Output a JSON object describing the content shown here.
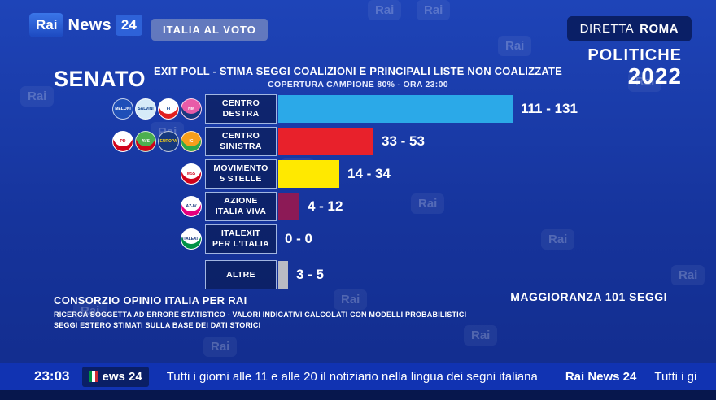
{
  "header": {
    "logo": {
      "rai": "Rai",
      "news": "News",
      "num": "24"
    },
    "italia_badge": "ITALIA AL VOTO",
    "diretta_label": "DIRETTA",
    "diretta_city": "ROMA",
    "politiche_line1": "POLITICHE",
    "politiche_line2": "2022"
  },
  "panel": {
    "section": "SENATO",
    "title": "EXIT POLL - STIMA SEGGI COALIZIONI E PRINCIPALI LISTE NON COALIZZATE",
    "subtitle": "COPERTURA CAMPIONE 80% - ORA 23:00"
  },
  "chart_data": {
    "type": "bar",
    "orientation": "horizontal",
    "title": "EXIT POLL - STIMA SEGGI COALIZIONI E PRINCIPALI LISTE NON COALIZZATE",
    "subtitle": "COPERTURA CAMPIONE 80% - ORA 23:00",
    "unit": "seggi",
    "scale_max": 131,
    "rows": [
      {
        "name": "centro-destra",
        "label1": "CENTRO",
        "label2": "DESTRA",
        "low": 111,
        "high": 131,
        "range": "111 - 131",
        "color": "#2BA9E8",
        "logos": [
          {
            "name": "fratelli-ditalia",
            "label": "MELONI",
            "bg": "#1F4FB8",
            "fg": "#FFFFFF"
          },
          {
            "name": "lega",
            "label": "SALVINI",
            "bg": "#D6EBF8",
            "fg": "#0B3C8C"
          },
          {
            "name": "forza-italia",
            "label": "FI",
            "bg": "#FFFFFF",
            "fg": "#0B3C8C",
            "band": "#E02020"
          },
          {
            "name": "noi-moderati",
            "label": "NM",
            "bg": "#E85BA8",
            "fg": "#FFFFFF",
            "band": "#16387F"
          }
        ]
      },
      {
        "name": "centro-sinistra",
        "label1": "CENTRO",
        "label2": "SINISTRA",
        "low": 33,
        "high": 53,
        "range": "33 - 53",
        "color": "#E8212B",
        "logos": [
          {
            "name": "partito-democratico",
            "label": "PD",
            "bg": "#FFFFFF",
            "fg": "#D0021B",
            "band": "#D0021B"
          },
          {
            "name": "alleanza-verdi-sinistra",
            "label": "AVS",
            "bg": "#4CAF50",
            "fg": "#FFFFFF",
            "band": "#D0021B"
          },
          {
            "name": "piu-europa",
            "label": "EUROPA",
            "bg": "#16387F",
            "fg": "#F7D117"
          },
          {
            "name": "impegno-civico",
            "label": "IC",
            "bg": "#F59E1B",
            "fg": "#FFFFFF",
            "band": "#2BA84A"
          }
        ]
      },
      {
        "name": "movimento-5-stelle",
        "label1": "MOVIMENTO",
        "label2": "5 STELLE",
        "low": 14,
        "high": 34,
        "range": "14 - 34",
        "color": "#FFE900",
        "logos": [
          {
            "name": "movimento-5-stelle",
            "label": "M5S",
            "bg": "#FFFFFF",
            "fg": "#D0021B",
            "band": "#D0021B"
          }
        ]
      },
      {
        "name": "azione-italia-viva",
        "label1": "AZIONE",
        "label2": "ITALIA VIVA",
        "low": 4,
        "high": 12,
        "range": "4 - 12",
        "color": "#8C1A56",
        "logos": [
          {
            "name": "azione-italia-viva",
            "label": "AZ-IV",
            "bg": "#FFFFFF",
            "fg": "#16387F",
            "band": "#E6007E"
          }
        ]
      },
      {
        "name": "italexit",
        "label1": "ITALEXIT",
        "label2": "PER L'ITALIA",
        "low": 0,
        "high": 0,
        "range": "0 - 0",
        "color": "#FFFFFF",
        "logos": [
          {
            "name": "italexit",
            "label": "ITALEXIT",
            "bg": "#FFFFFF",
            "fg": "#16387F",
            "band": "#009246"
          }
        ]
      },
      {
        "name": "altre",
        "label1": "ALTRE",
        "label2": "",
        "low": 3,
        "high": 5,
        "range": "3 - 5",
        "color": "#B9BBC4",
        "logos": []
      }
    ]
  },
  "footer": {
    "source": "CONSORZIO OPINIO ITALIA PER RAI",
    "note1": "RICERCA SOGGETTA AD ERRORE STATISTICO - VALORI INDICATIVI CALCOLATI CON MODELLI PROBABILISTICI",
    "note2": "SEGGI ESTERO STIMATI SULLA BASE DEI DATI STORICI",
    "majority": "MAGGIORANZA 101 SEGGI"
  },
  "ticker": {
    "time": "23:03",
    "logo_fragment": "ews 24",
    "message": "Tutti i giorni alle 11 e alle 20 il notiziario nella lingua dei segni italiana",
    "brand": "Rai News 24",
    "message2": "Tutti i gi"
  },
  "watermark": "Rai"
}
